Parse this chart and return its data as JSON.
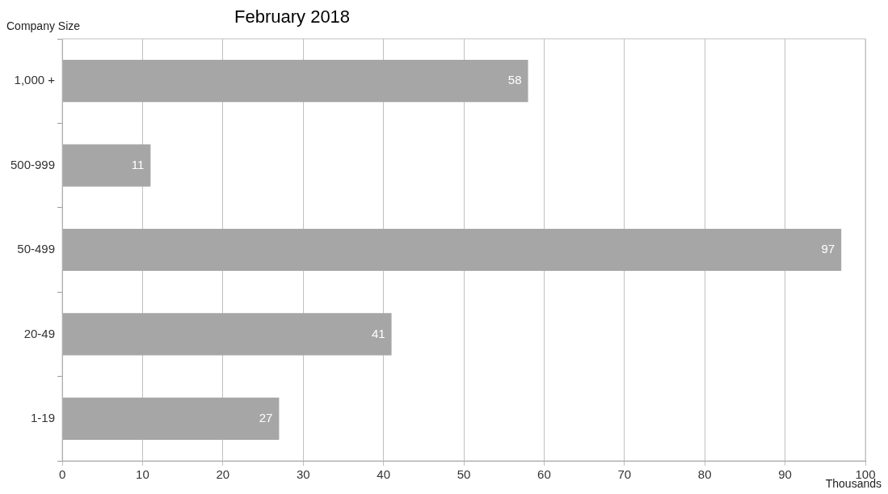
{
  "chart_data": {
    "type": "bar",
    "orientation": "horizontal",
    "title": "February 2018",
    "ylabel": "Company Size",
    "xlabel": "Thousands",
    "categories": [
      "1,000 +",
      "500-999",
      "50-499",
      "20-49",
      "1-19"
    ],
    "values": [
      58,
      11,
      97,
      41,
      27
    ],
    "color": "#a6a6a6",
    "xlim": [
      0,
      100
    ],
    "xticks": [
      0,
      10,
      20,
      30,
      40,
      50,
      60,
      70,
      80,
      90,
      100
    ],
    "grid": "x",
    "data_labels": true
  }
}
